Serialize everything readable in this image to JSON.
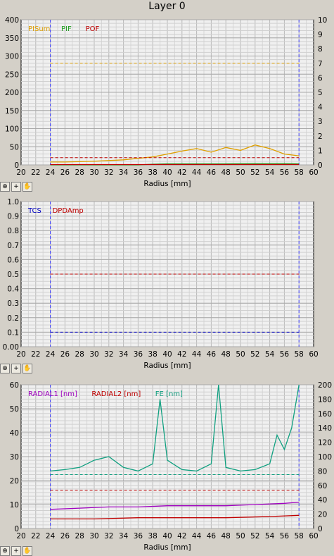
{
  "title": "Layer 0",
  "toolbar": {
    "zoom_icon": "magnifier-icon",
    "cross_icon": "crosshair-icon",
    "hand_icon": "hand-icon"
  },
  "chart_data": [
    {
      "type": "line",
      "xlabel": "Radius [mm]",
      "xlim": [
        20,
        60
      ],
      "xticks": [
        20,
        22,
        24,
        26,
        28,
        30,
        32,
        34,
        36,
        38,
        40,
        42,
        44,
        46,
        48,
        50,
        52,
        54,
        56,
        58,
        60
      ],
      "ylim": [
        0,
        400
      ],
      "yticks": [
        0,
        50,
        100,
        150,
        200,
        250,
        300,
        350,
        400
      ],
      "y2lim": [
        0,
        10
      ],
      "y2ticks": [
        0,
        1,
        2,
        3,
        4,
        5,
        6,
        7,
        8,
        9,
        10
      ],
      "grid": true,
      "legend": [
        "PISum",
        "PIF",
        "POF"
      ],
      "vlines": [
        24,
        58
      ],
      "series": [
        {
          "name": "PISum",
          "color": "#e0a000",
          "axis": "left",
          "x": [
            24,
            26,
            28,
            30,
            32,
            34,
            36,
            38,
            40,
            42,
            44,
            46,
            48,
            50,
            52,
            54,
            56,
            58
          ],
          "y": [
            8,
            8,
            9,
            10,
            12,
            14,
            18,
            22,
            30,
            38,
            45,
            35,
            48,
            40,
            55,
            45,
            30,
            25
          ],
          "threshold": 280
        },
        {
          "name": "PIF",
          "color": "#20a020",
          "axis": "left",
          "x": [
            24,
            30,
            36,
            38,
            40,
            44,
            48,
            52,
            56,
            58
          ],
          "y": [
            0,
            0,
            0,
            2,
            3,
            3,
            3,
            4,
            4,
            3
          ]
        },
        {
          "name": "POF",
          "color": "#c00000",
          "axis": "left",
          "x": [
            24,
            58
          ],
          "y": [
            1,
            1
          ],
          "threshold": 20
        }
      ]
    },
    {
      "type": "line",
      "xlabel": "Radius [mm]",
      "xlim": [
        20,
        60
      ],
      "xticks": [
        20,
        22,
        24,
        26,
        28,
        30,
        32,
        34,
        36,
        38,
        40,
        42,
        44,
        46,
        48,
        50,
        52,
        54,
        56,
        58,
        60
      ],
      "ylim": [
        0,
        1.0
      ],
      "yticks": [
        "0.00",
        "0.1",
        "0.2",
        "0.3",
        "0.4",
        "0.5",
        "0.6",
        "0.7",
        "0.8",
        "0.9",
        "1.0"
      ],
      "grid": true,
      "legend": [
        "TCS",
        "DPDAmp"
      ],
      "vlines": [
        24,
        58
      ],
      "series": [
        {
          "name": "TCS",
          "color": "#0000c0",
          "threshold": 0.1
        },
        {
          "name": "DPDAmp",
          "color": "#c00000",
          "threshold": 0.5
        }
      ]
    },
    {
      "type": "line",
      "xlabel": "Radius [mm]",
      "xlim": [
        20,
        60
      ],
      "xticks": [
        20,
        22,
        24,
        26,
        28,
        30,
        32,
        34,
        36,
        38,
        40,
        42,
        44,
        46,
        48,
        50,
        52,
        54,
        56,
        58,
        60
      ],
      "ylim": [
        0,
        60
      ],
      "yticks": [
        0,
        10,
        20,
        30,
        40,
        50,
        60
      ],
      "y2lim": [
        0,
        200
      ],
      "y2ticks": [
        0,
        20,
        40,
        60,
        80,
        100,
        120,
        140,
        160,
        180,
        200
      ],
      "grid": true,
      "legend": [
        "RADIAL1 [nm]",
        "RADIAL2 [nm]",
        "FE [nm]"
      ],
      "vlines": [
        24,
        58
      ],
      "series": [
        {
          "name": "RADIAL1 [nm]",
          "color": "#a000c0",
          "axis": "left",
          "x": [
            24,
            28,
            32,
            36,
            40,
            44,
            48,
            52,
            56,
            58
          ],
          "y": [
            8,
            8.5,
            9,
            9,
            9.5,
            9.5,
            9.5,
            10,
            10.5,
            11
          ]
        },
        {
          "name": "RADIAL2 [nm]",
          "color": "#c00000",
          "axis": "left",
          "x": [
            24,
            30,
            36,
            42,
            48,
            54,
            58
          ],
          "y": [
            4,
            4,
            4.5,
            4.5,
            4.5,
            5,
            5.5
          ],
          "threshold": 16
        },
        {
          "name": "FE [nm]",
          "color": "#10a080",
          "axis": "right",
          "x": [
            24,
            26,
            28,
            30,
            32,
            34,
            36,
            38,
            39,
            40,
            42,
            44,
            46,
            47,
            48,
            50,
            52,
            54,
            55,
            56,
            57,
            58
          ],
          "y": [
            80,
            82,
            85,
            95,
            100,
            85,
            80,
            90,
            180,
            95,
            82,
            80,
            90,
            200,
            85,
            80,
            82,
            90,
            130,
            110,
            140,
            200
          ],
          "threshold": 75
        }
      ]
    }
  ]
}
